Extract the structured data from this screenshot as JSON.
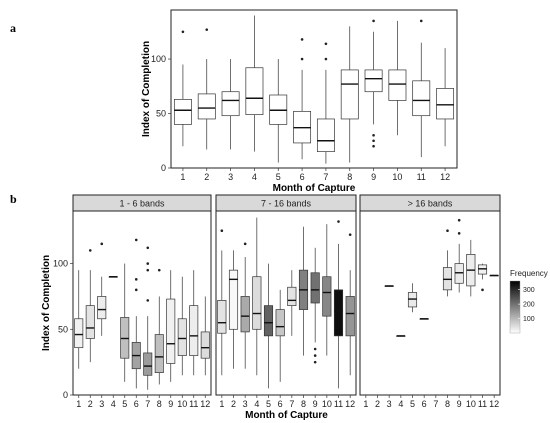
{
  "labels": {
    "panel_a": "a",
    "panel_b": "b"
  },
  "chart_data": [
    {
      "type": "boxplot",
      "panel": "a",
      "xlabel": "Month of Capture",
      "ylabel": "Index of Completion",
      "categories": [
        "1",
        "2",
        "3",
        "4",
        "5",
        "6",
        "7",
        "8",
        "9",
        "10",
        "11",
        "12"
      ],
      "ylim": [
        0,
        145
      ],
      "yticks": [
        0,
        50,
        100
      ],
      "boxes": [
        {
          "x": "1",
          "q1": 40,
          "median": 53,
          "q3": 63,
          "whisker_low": 20,
          "whisker_high": 95,
          "outliers": [
            125
          ]
        },
        {
          "x": "2",
          "q1": 45,
          "median": 55,
          "q3": 68,
          "whisker_low": 17,
          "whisker_high": 100,
          "outliers": [
            127
          ]
        },
        {
          "x": "3",
          "q1": 48,
          "median": 62,
          "q3": 70,
          "whisker_low": 17,
          "whisker_high": 100,
          "outliers": []
        },
        {
          "x": "4",
          "q1": 49,
          "median": 64,
          "q3": 92,
          "whisker_low": 15,
          "whisker_high": 140,
          "outliers": []
        },
        {
          "x": "5",
          "q1": 40,
          "median": 53,
          "q3": 67,
          "whisker_low": 5,
          "whisker_high": 100,
          "outliers": []
        },
        {
          "x": "6",
          "q1": 23,
          "median": 37,
          "q3": 52,
          "whisker_low": 8,
          "whisker_high": 90,
          "outliers": [
            100,
            118
          ]
        },
        {
          "x": "7",
          "q1": 15,
          "median": 25,
          "q3": 45,
          "whisker_low": 4,
          "whisker_high": 90,
          "outliers": [
            100,
            114
          ]
        },
        {
          "x": "8",
          "q1": 45,
          "median": 77,
          "q3": 90,
          "whisker_low": 5,
          "whisker_high": 130,
          "outliers": []
        },
        {
          "x": "9",
          "q1": 70,
          "median": 82,
          "q3": 90,
          "whisker_low": 40,
          "whisker_high": 125,
          "outliers": [
            20,
            25,
            30,
            135
          ]
        },
        {
          "x": "10",
          "q1": 62,
          "median": 77,
          "q3": 90,
          "whisker_low": 30,
          "whisker_high": 135,
          "outliers": []
        },
        {
          "x": "11",
          "q1": 48,
          "median": 62,
          "q3": 80,
          "whisker_low": 10,
          "whisker_high": 115,
          "outliers": [
            135
          ]
        },
        {
          "x": "12",
          "q1": 45,
          "median": 58,
          "q3": 73,
          "whisker_low": 20,
          "whisker_high": 110,
          "outliers": []
        }
      ]
    },
    {
      "type": "boxplot",
      "panel": "b",
      "xlabel": "Month of Capture",
      "ylabel": "Index of Completion",
      "ylim": [
        0,
        140
      ],
      "yticks": [
        0,
        50,
        100
      ],
      "legend": {
        "title": "Frequency",
        "ticks": [
          100,
          200,
          300
        ],
        "range": [
          0,
          360
        ],
        "low_color": "#ffffff",
        "high_color": "#000000",
        "position": "right"
      },
      "facets": [
        {
          "label": "1 - 6 bands",
          "categories": [
            "1",
            "2",
            "3",
            "4",
            "5",
            "6",
            "7",
            "8",
            "9",
            "10",
            "11",
            "12"
          ],
          "boxes": [
            {
              "x": "1",
              "q1": 36,
              "median": 46,
              "q3": 58,
              "whisker_low": 20,
              "whisker_high": 95,
              "outliers": [],
              "frequency": 20
            },
            {
              "x": "2",
              "q1": 43,
              "median": 51,
              "q3": 68,
              "whisker_low": 25,
              "whisker_high": 95,
              "outliers": [
                110
              ],
              "frequency": 40
            },
            {
              "x": "3",
              "q1": 58,
              "median": 65,
              "q3": 75,
              "whisker_low": 45,
              "whisker_high": 90,
              "outliers": [
                115
              ],
              "frequency": 25
            },
            {
              "x": "4",
              "q1": 90,
              "median": 90,
              "q3": 90,
              "whisker_low": 90,
              "whisker_high": 90,
              "outliers": [],
              "frequency": 40
            },
            {
              "x": "5",
              "q1": 28,
              "median": 43,
              "q3": 59,
              "whisker_low": 10,
              "whisker_high": 100,
              "outliers": [],
              "frequency": 90
            },
            {
              "x": "6",
              "q1": 20,
              "median": 30,
              "q3": 40,
              "whisker_low": 5,
              "whisker_high": 60,
              "outliers": [
                80,
                88,
                118
              ],
              "frequency": 130
            },
            {
              "x": "7",
              "q1": 15,
              "median": 22,
              "q3": 32,
              "whisker_low": 4,
              "whisker_high": 60,
              "outliers": [
                72,
                95,
                100,
                112
              ],
              "frequency": 140
            },
            {
              "x": "8",
              "q1": 17,
              "median": 29,
              "q3": 46,
              "whisker_low": 8,
              "whisker_high": 75,
              "outliers": [
                95
              ],
              "frequency": 90
            },
            {
              "x": "9",
              "q1": 24,
              "median": 39,
              "q3": 73,
              "whisker_low": 10,
              "whisker_high": 95,
              "outliers": [],
              "frequency": 20
            },
            {
              "x": "10",
              "q1": 30,
              "median": 43,
              "q3": 58,
              "whisker_low": 15,
              "whisker_high": 90,
              "outliers": [],
              "frequency": 40
            },
            {
              "x": "11",
              "q1": 30,
              "median": 45,
              "q3": 68,
              "whisker_low": 15,
              "whisker_high": 95,
              "outliers": [],
              "frequency": 25
            },
            {
              "x": "12",
              "q1": 28,
              "median": 36,
              "q3": 48,
              "whisker_low": 15,
              "whisker_high": 75,
              "outliers": [],
              "frequency": 50
            }
          ]
        },
        {
          "label": "7 - 16 bands",
          "categories": [
            "1",
            "2",
            "3",
            "4",
            "5",
            "6",
            "7",
            "8",
            "9",
            "10",
            "11",
            "12"
          ],
          "boxes": [
            {
              "x": "1",
              "q1": 47,
              "median": 55,
              "q3": 72,
              "whisker_low": 15,
              "whisker_high": 110,
              "outliers": [
                125
              ],
              "frequency": 40
            },
            {
              "x": "2",
              "q1": 50,
              "median": 88,
              "q3": 95,
              "whisker_low": 20,
              "whisker_high": 110,
              "outliers": [],
              "frequency": 10
            },
            {
              "x": "3",
              "q1": 48,
              "median": 60,
              "q3": 75,
              "whisker_low": 20,
              "whisker_high": 105,
              "outliers": [
                115
              ],
              "frequency": 120
            },
            {
              "x": "4",
              "q1": 50,
              "median": 62,
              "q3": 90,
              "whisker_low": 15,
              "whisker_high": 135,
              "outliers": [],
              "frequency": 50
            },
            {
              "x": "5",
              "q1": 45,
              "median": 55,
              "q3": 68,
              "whisker_low": 5,
              "whisker_high": 100,
              "outliers": [],
              "frequency": 220
            },
            {
              "x": "6",
              "q1": 45,
              "median": 52,
              "q3": 65,
              "whisker_low": 10,
              "whisker_high": 80,
              "outliers": [],
              "frequency": 80
            },
            {
              "x": "7",
              "q1": 68,
              "median": 72,
              "q3": 82,
              "whisker_low": 45,
              "whisker_high": 95,
              "outliers": [],
              "frequency": 40
            },
            {
              "x": "8",
              "q1": 65,
              "median": 80,
              "q3": 95,
              "whisker_low": 30,
              "whisker_high": 128,
              "outliers": [],
              "frequency": 180
            },
            {
              "x": "9",
              "q1": 70,
              "median": 80,
              "q3": 93,
              "whisker_low": 40,
              "whisker_high": 112,
              "outliers": [
                25,
                30,
                35
              ],
              "frequency": 200
            },
            {
              "x": "10",
              "q1": 60,
              "median": 78,
              "q3": 90,
              "whisker_low": 30,
              "whisker_high": 130,
              "outliers": [],
              "frequency": 170
            },
            {
              "x": "11",
              "q1": 45,
              "median": 64,
              "q3": 80,
              "whisker_low": 5,
              "whisker_high": 115,
              "outliers": [
                132
              ],
              "frequency": 340
            },
            {
              "x": "12",
              "q1": 45,
              "median": 62,
              "q3": 75,
              "whisker_low": 15,
              "whisker_high": 95,
              "outliers": [
                122
              ],
              "frequency": 150
            }
          ]
        },
        {
          "label": "> 16 bands",
          "categories": [
            "1",
            "2",
            "3",
            "4",
            "5",
            "6",
            "7",
            "8",
            "9",
            "10",
            "11",
            "12"
          ],
          "boxes": [
            {
              "x": "3",
              "q1": 83,
              "median": 83,
              "q3": 83,
              "whisker_low": 83,
              "whisker_high": 83,
              "outliers": [],
              "frequency": 20
            },
            {
              "x": "4",
              "q1": 45,
              "median": 45,
              "q3": 45,
              "whisker_low": 45,
              "whisker_high": 45,
              "outliers": [],
              "frequency": 20
            },
            {
              "x": "5",
              "q1": 67,
              "median": 73,
              "q3": 78,
              "whisker_low": 63,
              "whisker_high": 85,
              "outliers": [],
              "frequency": 30
            },
            {
              "x": "6",
              "q1": 58,
              "median": 58,
              "q3": 58,
              "whisker_low": 58,
              "whisker_high": 58,
              "outliers": [],
              "frequency": 20
            },
            {
              "x": "8",
              "q1": 80,
              "median": 88,
              "q3": 97,
              "whisker_low": 75,
              "whisker_high": 110,
              "outliers": [
                125
              ],
              "frequency": 40
            },
            {
              "x": "9",
              "q1": 85,
              "median": 93,
              "q3": 100,
              "whisker_low": 78,
              "whisker_high": 115,
              "outliers": [
                123,
                133
              ],
              "frequency": 30
            },
            {
              "x": "10",
              "q1": 83,
              "median": 95,
              "q3": 107,
              "whisker_low": 75,
              "whisker_high": 118,
              "outliers": [],
              "frequency": 25
            },
            {
              "x": "11",
              "q1": 92,
              "median": 96,
              "q3": 99,
              "whisker_low": 88,
              "whisker_high": 100,
              "outliers": [
                80
              ],
              "frequency": 20
            },
            {
              "x": "12",
              "q1": 91,
              "median": 91,
              "q3": 91,
              "whisker_low": 91,
              "whisker_high": 91,
              "outliers": [],
              "frequency": 20
            }
          ]
        }
      ]
    }
  ]
}
